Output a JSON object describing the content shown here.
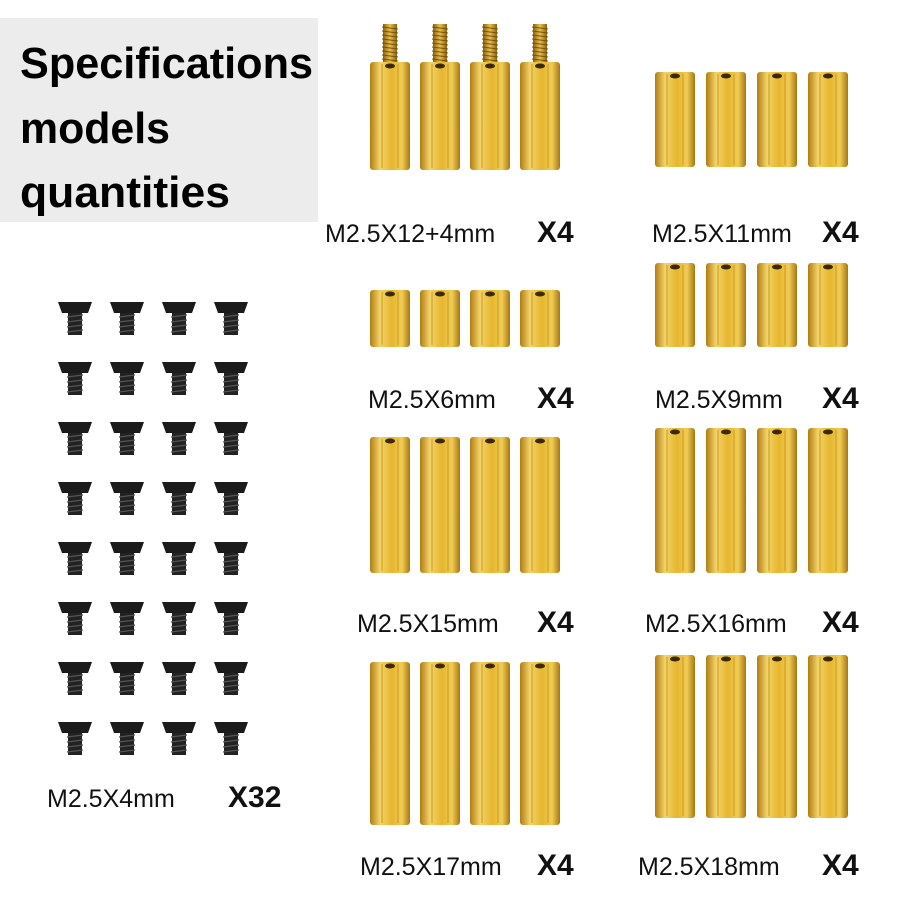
{
  "header": {
    "lines": [
      "Specifications",
      "models",
      "quantities"
    ]
  },
  "items": [
    {
      "model": "M2.5X12+4mm",
      "quantity": "X4"
    },
    {
      "model": "M2.5X11mm",
      "quantity": "X4"
    },
    {
      "model": "M2.5X6mm",
      "quantity": "X4"
    },
    {
      "model": "M2.5X9mm",
      "quantity": "X4"
    },
    {
      "model": "M2.5X15mm",
      "quantity": "X4"
    },
    {
      "model": "M2.5X16mm",
      "quantity": "X4"
    },
    {
      "model": "M2.5X17mm",
      "quantity": "X4"
    },
    {
      "model": "M2.5X18mm",
      "quantity": "X4"
    },
    {
      "model": "M2.5X4mm",
      "quantity": "X32"
    }
  ]
}
